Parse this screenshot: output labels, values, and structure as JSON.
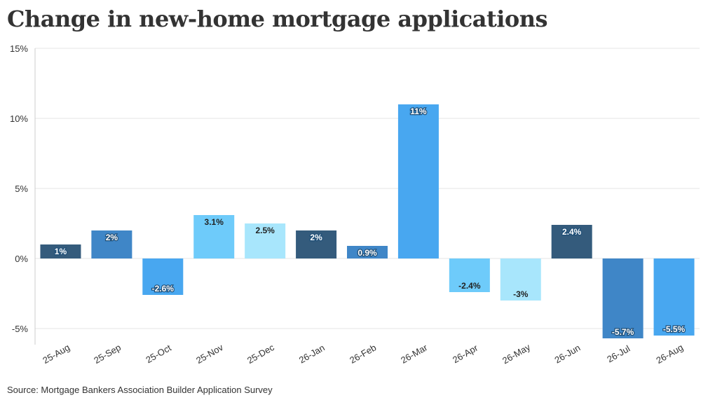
{
  "chart_data": {
    "type": "bar",
    "title": "Change in new-home mortgage applications",
    "categories": [
      "25-Aug",
      "25-Sep",
      "25-Oct",
      "25-Nov",
      "25-Dec",
      "26-Jan",
      "26-Feb",
      "26-Mar",
      "26-Apr",
      "26-May",
      "26-Jun",
      "26-Jul",
      "26-Aug"
    ],
    "values": [
      1,
      2,
      -2.6,
      3.1,
      2.5,
      2,
      0.9,
      11,
      -2.4,
      -3,
      2.4,
      -5.7,
      -5.5
    ],
    "value_labels": [
      "1%",
      "2%",
      "-2.6%",
      "3.1%",
      "2.5%",
      "2%",
      "0.9%",
      "11%",
      "-2.4%",
      "-3%",
      "2.4%",
      "-5.7%",
      "-5.5%"
    ],
    "bar_colors": [
      "#345b7c",
      "#3f86c7",
      "#48a7f0",
      "#6ecbfa",
      "#a8e6fc",
      "#345b7c",
      "#3f86c7",
      "#48a7f0",
      "#6ecbfa",
      "#a8e6fc",
      "#345b7c",
      "#3f86c7",
      "#48a7f0"
    ],
    "ylim": [
      -6,
      15
    ],
    "yticks": [
      15,
      10,
      5,
      0,
      -5
    ],
    "ytick_labels": [
      "15%",
      "10%",
      "5%",
      "0%",
      "-5%"
    ],
    "xlabel": "",
    "ylabel": "",
    "grid": true
  },
  "source": "Source: Mortgage Bankers Association Builder Application Survey"
}
